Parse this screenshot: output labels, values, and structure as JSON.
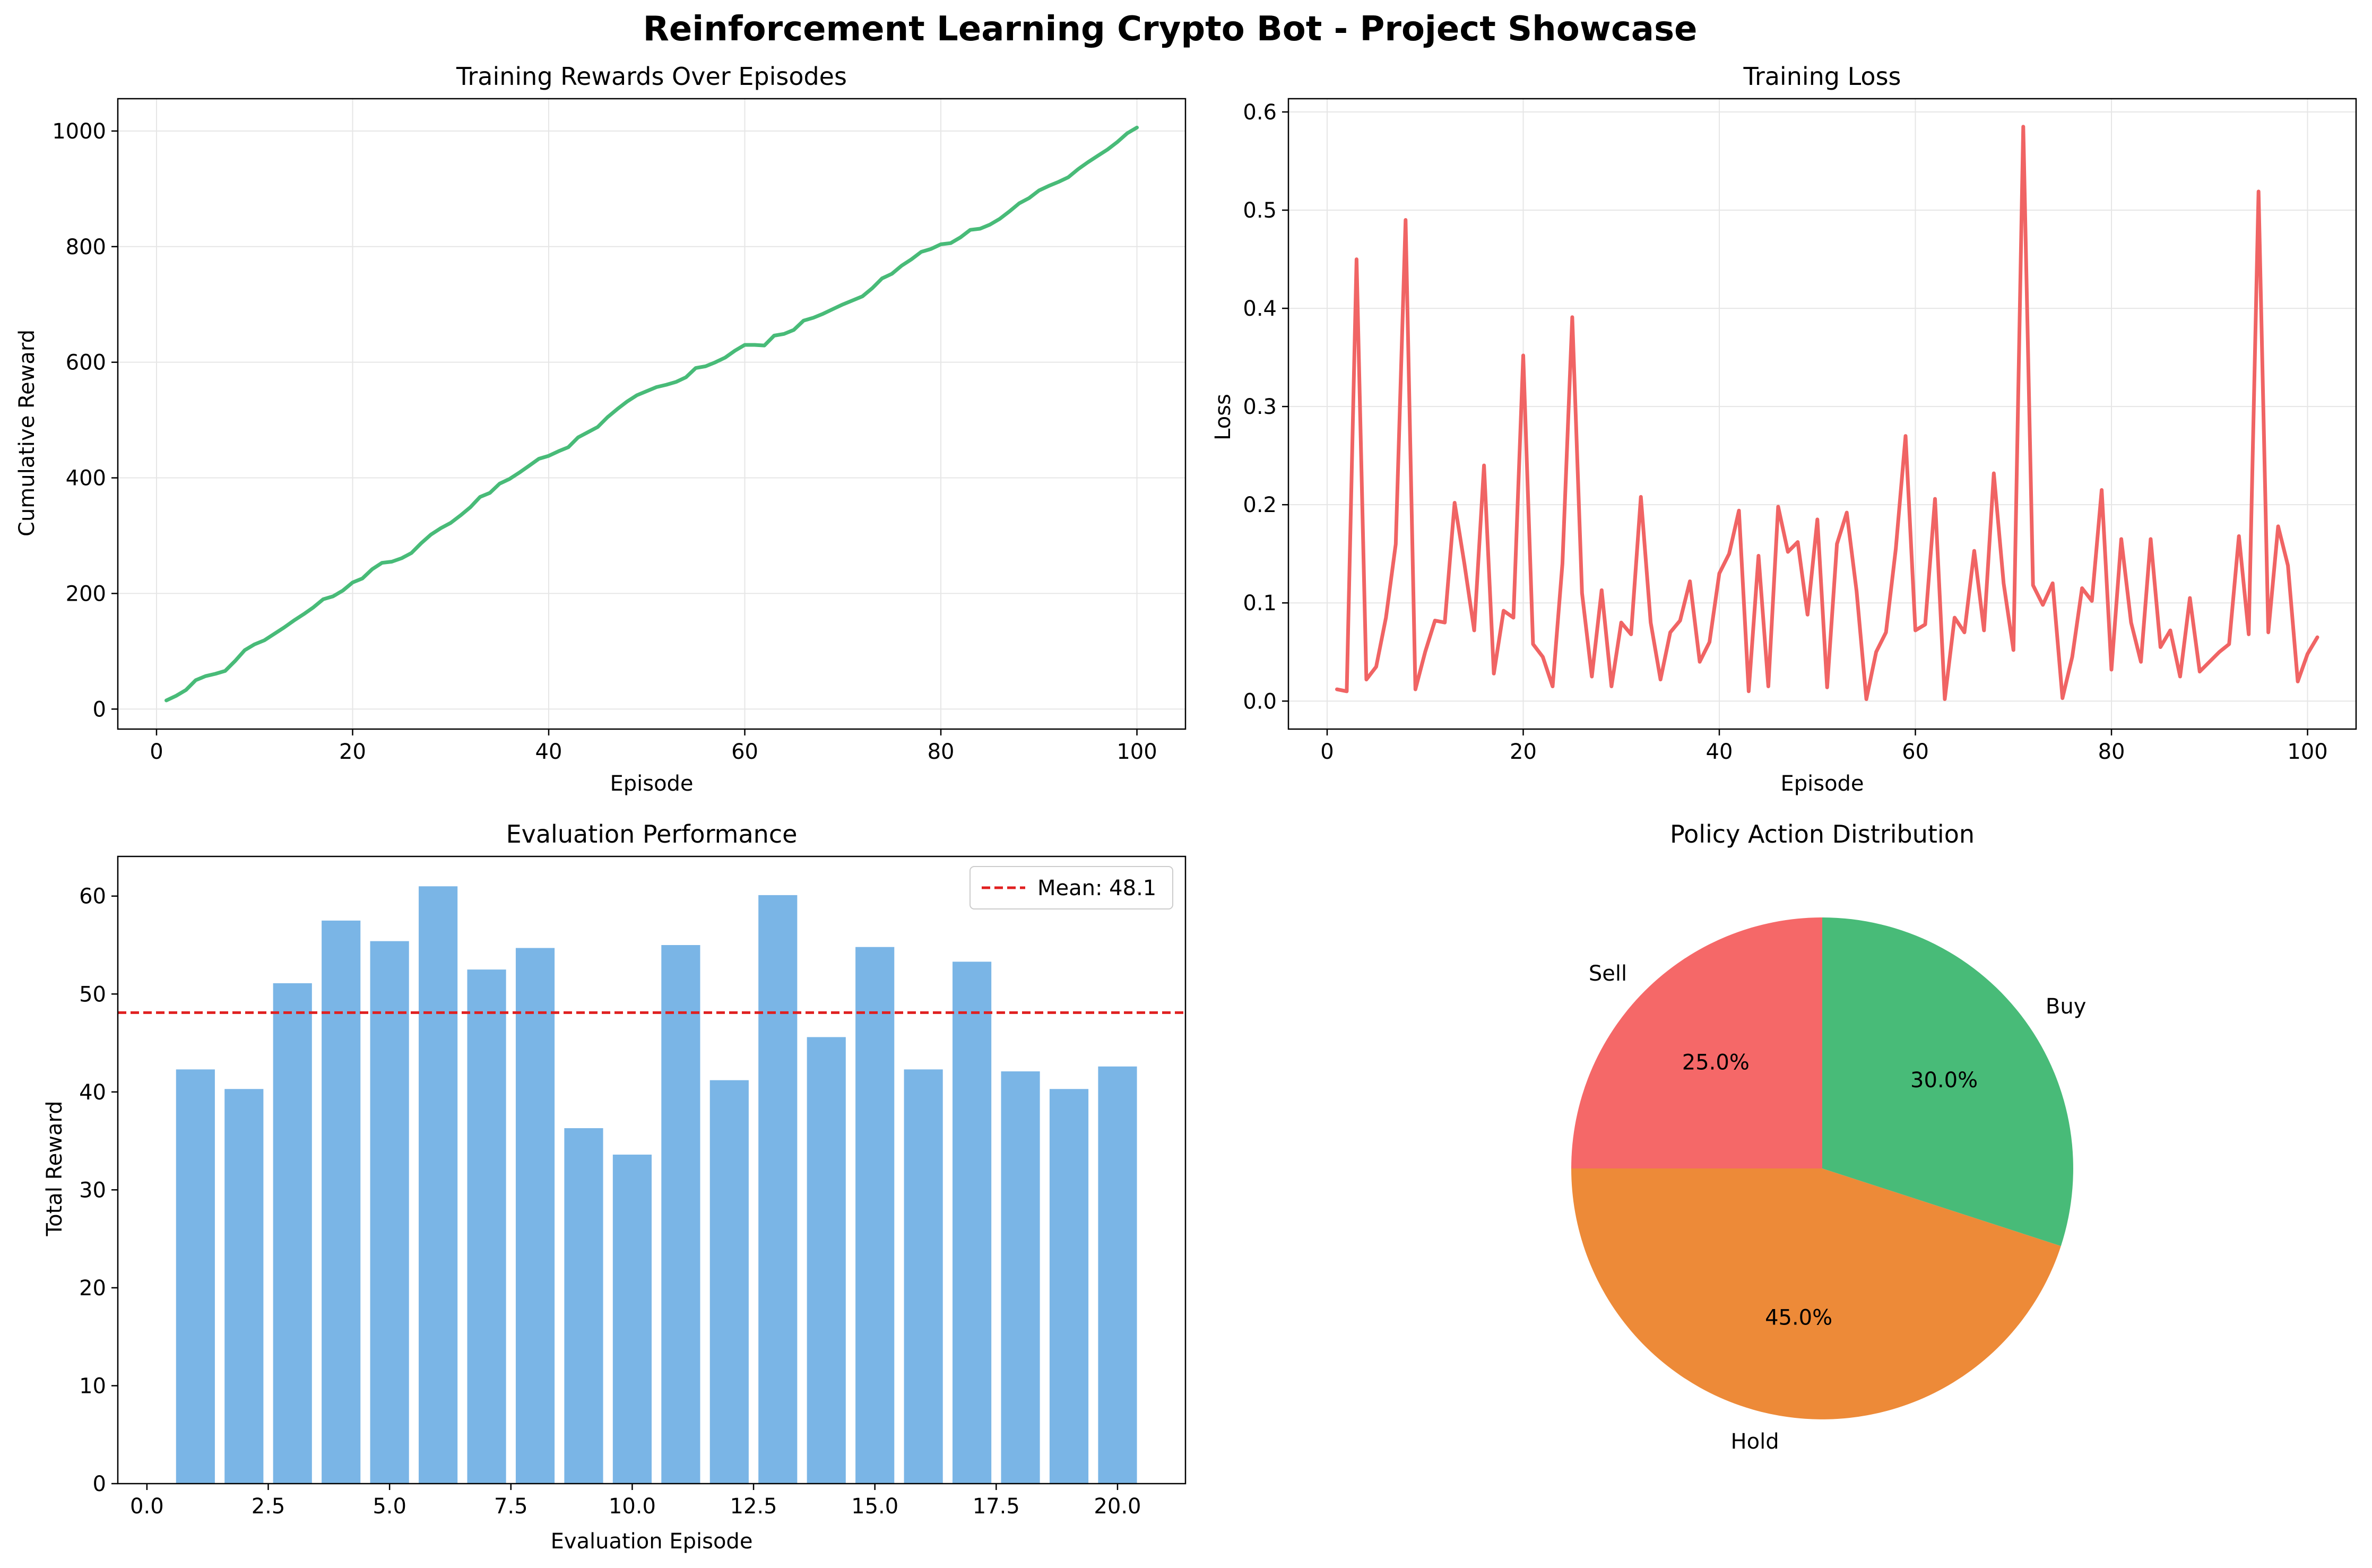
{
  "suptitle": "Reinforcement Learning Crypto Bot - Project Showcase",
  "chart_data": [
    {
      "id": "rewards",
      "type": "line",
      "title": "Training Rewards Over Episodes",
      "xlabel": "Episode",
      "ylabel": "Cumulative Reward",
      "xlim": [
        -3.95,
        104.95
      ],
      "ylim": [
        -34.6,
        1055.9
      ],
      "xticks": [
        0,
        20,
        40,
        60,
        80,
        100
      ],
      "xtick_labels": [
        "0",
        "20",
        "40",
        "60",
        "80",
        "100"
      ],
      "yticks": [
        0,
        200,
        400,
        600,
        800,
        1000
      ],
      "ytick_labels": [
        "0",
        "200",
        "400",
        "600",
        "800",
        "1000"
      ],
      "grid": true,
      "color": "#48bb78",
      "series": [
        {
          "x_start": 1,
          "x_step": 1,
          "y": [
            15,
            23,
            33,
            50,
            57,
            61,
            66,
            83,
            102,
            112,
            119,
            130,
            141,
            153,
            164,
            176,
            190,
            195,
            205,
            219,
            226,
            242,
            253,
            255,
            261,
            270,
            287,
            302,
            313,
            322,
            335,
            349,
            367,
            374,
            390,
            398,
            409,
            421,
            433,
            438,
            446,
            453,
            470,
            479,
            488,
            505,
            519,
            532,
            543,
            550,
            557,
            561,
            566,
            574,
            590,
            593,
            600,
            608,
            620,
            630,
            630,
            629,
            646,
            649,
            656,
            672,
            677,
            684,
            692,
            700,
            707,
            714,
            728,
            745,
            753,
            767,
            778,
            791,
            796,
            804,
            806,
            816,
            829,
            831,
            838,
            848,
            861,
            875,
            884,
            897,
            905,
            912,
            920,
            934,
            946,
            957,
            968,
            981,
            996,
            1006
          ]
        }
      ]
    },
    {
      "id": "loss",
      "type": "line",
      "title": "Training Loss",
      "xlabel": "Episode",
      "ylabel": "Loss",
      "xlim": [
        -3.95,
        104.95
      ],
      "ylim": [
        -0.0285,
        0.6135
      ],
      "xticks": [
        0,
        20,
        40,
        60,
        80,
        100
      ],
      "xtick_labels": [
        "0",
        "20",
        "40",
        "60",
        "80",
        "100"
      ],
      "yticks": [
        0.0,
        0.1,
        0.2,
        0.3,
        0.4,
        0.5,
        0.6
      ],
      "ytick_labels": [
        "0.0",
        "0.1",
        "0.2",
        "0.3",
        "0.4",
        "0.5",
        "0.6"
      ],
      "grid": true,
      "color": "#f06464",
      "series": [
        {
          "x_start": 1,
          "x_step": 1,
          "y": [
            0.012,
            0.01,
            0.45,
            0.022,
            0.035,
            0.085,
            0.16,
            0.49,
            0.012,
            0.05,
            0.082,
            0.08,
            0.202,
            0.14,
            0.072,
            0.24,
            0.028,
            0.092,
            0.085,
            0.352,
            0.058,
            0.045,
            0.015,
            0.14,
            0.391,
            0.11,
            0.025,
            0.113,
            0.015,
            0.08,
            0.068,
            0.208,
            0.08,
            0.022,
            0.07,
            0.082,
            0.122,
            0.04,
            0.06,
            0.13,
            0.15,
            0.194,
            0.01,
            0.148,
            0.015,
            0.198,
            0.152,
            0.162,
            0.088,
            0.185,
            0.014,
            0.16,
            0.192,
            0.112,
            0.002,
            0.05,
            0.07,
            0.155,
            0.27,
            0.072,
            0.078,
            0.206,
            0.002,
            0.085,
            0.07,
            0.153,
            0.072,
            0.232,
            0.12,
            0.052,
            0.585,
            0.118,
            0.098,
            0.12,
            0.003,
            0.045,
            0.115,
            0.102,
            0.215,
            0.032,
            0.165,
            0.08,
            0.04,
            0.165,
            0.055,
            0.072,
            0.025,
            0.105,
            0.03,
            0.04,
            0.05,
            0.058,
            0.168,
            0.068,
            0.519,
            0.07,
            0.178,
            0.138,
            0.02,
            0.048,
            0.065
          ]
        }
      ]
    },
    {
      "id": "evaluation",
      "type": "bar",
      "title": "Evaluation Performance",
      "xlabel": "Evaluation Episode",
      "ylabel": "Total Reward",
      "xlim": [
        -0.6,
        21.4
      ],
      "ylim": [
        0,
        64.05
      ],
      "xticks": [
        0.0,
        2.5,
        5.0,
        7.5,
        10.0,
        12.5,
        15.0,
        17.5,
        20.0
      ],
      "xtick_labels": [
        "0.0",
        "2.5",
        "5.0",
        "7.5",
        "10.0",
        "12.5",
        "15.0",
        "17.5",
        "20.0"
      ],
      "yticks": [
        0,
        10,
        20,
        30,
        40,
        50,
        60
      ],
      "ytick_labels": [
        "0",
        "10",
        "20",
        "30",
        "40",
        "50",
        "60"
      ],
      "grid": false,
      "color": "#7ab5e6",
      "x": [
        1,
        2,
        3,
        4,
        5,
        6,
        7,
        8,
        9,
        10,
        11,
        12,
        13,
        14,
        15,
        16,
        17,
        18,
        19,
        20
      ],
      "values": [
        42.3,
        40.3,
        51.1,
        57.5,
        55.4,
        61.0,
        52.5,
        54.7,
        36.3,
        33.6,
        55.0,
        41.2,
        60.1,
        45.6,
        54.8,
        42.3,
        53.3,
        42.1,
        40.3,
        42.6
      ],
      "mean_line": {
        "value": 48.1,
        "label": "Mean: 48.1",
        "color": "#e02020"
      },
      "legend_position": "upper-right"
    },
    {
      "id": "actions",
      "type": "pie",
      "title": "Policy Action Distribution",
      "slices": [
        {
          "label": "Sell",
          "value": 25.0,
          "pct": "25.0%",
          "color": "#f56868"
        },
        {
          "label": "Hold",
          "value": 45.0,
          "pct": "45.0%",
          "color": "#ed8a38"
        },
        {
          "label": "Buy",
          "value": 30.0,
          "pct": "30.0%",
          "color": "#48bb78"
        }
      ]
    }
  ]
}
